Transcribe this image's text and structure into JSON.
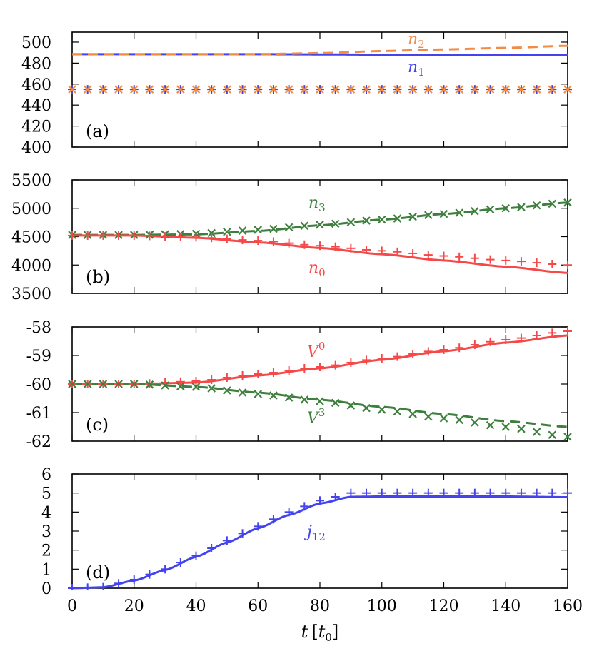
{
  "figure": {
    "xlabel": "t [t0]",
    "xlabel_main": "t",
    "xlabel_unit_open": "[",
    "xlabel_unit": "t",
    "xlabel_unit_sub": "0",
    "xlabel_unit_close": "]",
    "x_ticks": [
      "0",
      "20",
      "40",
      "60",
      "80",
      "100",
      "120",
      "140",
      "160"
    ]
  },
  "colors": {
    "blue": "#4444ee",
    "orange": "#f28c45",
    "green": "#3e7f3e",
    "red": "#f54848",
    "axis": "#000000"
  },
  "chart_data": [
    {
      "panel": "(a)",
      "type": "line",
      "xlabel": "t [t0]",
      "ylabel": "",
      "xlim": [
        0,
        160
      ],
      "ylim": [
        400,
        509
      ],
      "y_ticks": [
        "400",
        "420",
        "440",
        "460",
        "480",
        "500"
      ],
      "x": [
        0,
        20,
        40,
        60,
        80,
        100,
        120,
        140,
        160
      ],
      "series": [
        {
          "name": "n1",
          "label_main": "n",
          "label_sub": "1",
          "style": "solid line",
          "color": "#4444ee",
          "values": [
            488.5,
            488.5,
            488.5,
            488.5,
            488.3,
            488.0,
            488.0,
            488.0,
            488.0
          ]
        },
        {
          "name": "n2",
          "label_main": "n",
          "label_sub": "2",
          "style": "dashed line",
          "color": "#f28c45",
          "values": [
            488.5,
            488.5,
            488.5,
            488.5,
            489.5,
            491.5,
            493.0,
            494.5,
            496.5
          ]
        },
        {
          "name": "n1 markers",
          "style": "plus markers",
          "color": "#4444ee",
          "values": [
            455,
            455,
            455,
            455,
            455,
            455,
            455,
            455,
            455
          ]
        },
        {
          "name": "n2 markers",
          "style": "x markers",
          "color": "#f28c45",
          "values": [
            455,
            455,
            455,
            455,
            455,
            455,
            455,
            455,
            455
          ]
        }
      ]
    },
    {
      "panel": "(b)",
      "type": "line",
      "xlabel": "t [t0]",
      "ylabel": "",
      "xlim": [
        0,
        160
      ],
      "ylim": [
        3500,
        5500
      ],
      "y_ticks": [
        "3500",
        "4000",
        "4500",
        "5000",
        "5500"
      ],
      "x": [
        0,
        20,
        40,
        60,
        80,
        100,
        120,
        140,
        160
      ],
      "series": [
        {
          "name": "n3",
          "label_main": "n",
          "label_sub": "3",
          "style": "dashed line",
          "color": "#3e7f3e",
          "values": [
            4530,
            4530,
            4540,
            4600,
            4700,
            4800,
            4900,
            5000,
            5100
          ]
        },
        {
          "name": "n0",
          "label_main": "n",
          "label_sub": "0",
          "style": "solid line",
          "color": "#f54848",
          "values": [
            4520,
            4520,
            4480,
            4400,
            4300,
            4190,
            4080,
            3970,
            3860
          ]
        },
        {
          "name": "n3 markers",
          "style": "x markers",
          "color": "#3e7f3e",
          "values": [
            4530,
            4530,
            4550,
            4620,
            4710,
            4800,
            4900,
            5000,
            5100
          ]
        },
        {
          "name": "n0 markers",
          "style": "plus markers",
          "color": "#f54848",
          "values": [
            4520,
            4520,
            4490,
            4430,
            4340,
            4250,
            4160,
            4080,
            4000
          ]
        }
      ]
    },
    {
      "panel": "(c)",
      "type": "line",
      "xlabel": "t [t0]",
      "ylabel": "",
      "xlim": [
        0,
        160
      ],
      "ylim": [
        -62,
        -58
      ],
      "y_ticks": [
        "-62",
        "-61",
        "-60",
        "-59",
        "-58"
      ],
      "x": [
        0,
        20,
        40,
        60,
        80,
        100,
        120,
        140,
        160
      ],
      "series": [
        {
          "name": "V0",
          "label_main": "V",
          "label_sup": "0",
          "style": "solid line",
          "color": "#f54848",
          "values": [
            -60.0,
            -60.0,
            -59.95,
            -59.7,
            -59.45,
            -59.15,
            -58.85,
            -58.55,
            -58.3
          ]
        },
        {
          "name": "V3",
          "label_main": "V",
          "label_sup": "3",
          "style": "dashed line",
          "color": "#3e7f3e",
          "values": [
            -60.0,
            -60.0,
            -60.1,
            -60.3,
            -60.55,
            -60.8,
            -61.05,
            -61.3,
            -61.5
          ]
        },
        {
          "name": "V0 markers",
          "style": "plus markers",
          "color": "#f54848",
          "values": [
            -60.0,
            -60.0,
            -59.9,
            -59.65,
            -59.4,
            -59.1,
            -58.8,
            -58.45,
            -58.15
          ]
        },
        {
          "name": "V3 markers",
          "style": "x markers",
          "color": "#3e7f3e",
          "values": [
            -60.0,
            -60.0,
            -60.1,
            -60.35,
            -60.6,
            -60.9,
            -61.2,
            -61.5,
            -61.85
          ]
        }
      ]
    },
    {
      "panel": "(d)",
      "type": "line",
      "xlabel": "t [t0]",
      "ylabel": "",
      "xlim": [
        0,
        160
      ],
      "ylim": [
        0,
        6
      ],
      "y_ticks": [
        "0",
        "1",
        "2",
        "3",
        "4",
        "5",
        "6"
      ],
      "x": [
        0,
        10,
        20,
        30,
        40,
        50,
        60,
        70,
        80,
        90,
        100,
        120,
        140,
        160
      ],
      "series": [
        {
          "name": "j12",
          "label_main": "j",
          "label_sub": "12",
          "style": "solid line",
          "color": "#4444ee",
          "values": [
            0.0,
            0.05,
            0.4,
            0.95,
            1.65,
            2.4,
            3.15,
            3.85,
            4.45,
            4.8,
            4.82,
            4.82,
            4.82,
            4.78
          ]
        },
        {
          "name": "j12 markers",
          "style": "plus markers",
          "color": "#4444ee",
          "values": [
            0.0,
            0.05,
            0.45,
            1.0,
            1.7,
            2.5,
            3.25,
            4.0,
            4.6,
            5.0,
            5.0,
            5.0,
            5.0,
            5.0
          ]
        }
      ]
    }
  ],
  "panels": [
    {
      "label": "(a)"
    },
    {
      "label": "(b)"
    },
    {
      "label": "(c)"
    },
    {
      "label": "(d)"
    }
  ]
}
